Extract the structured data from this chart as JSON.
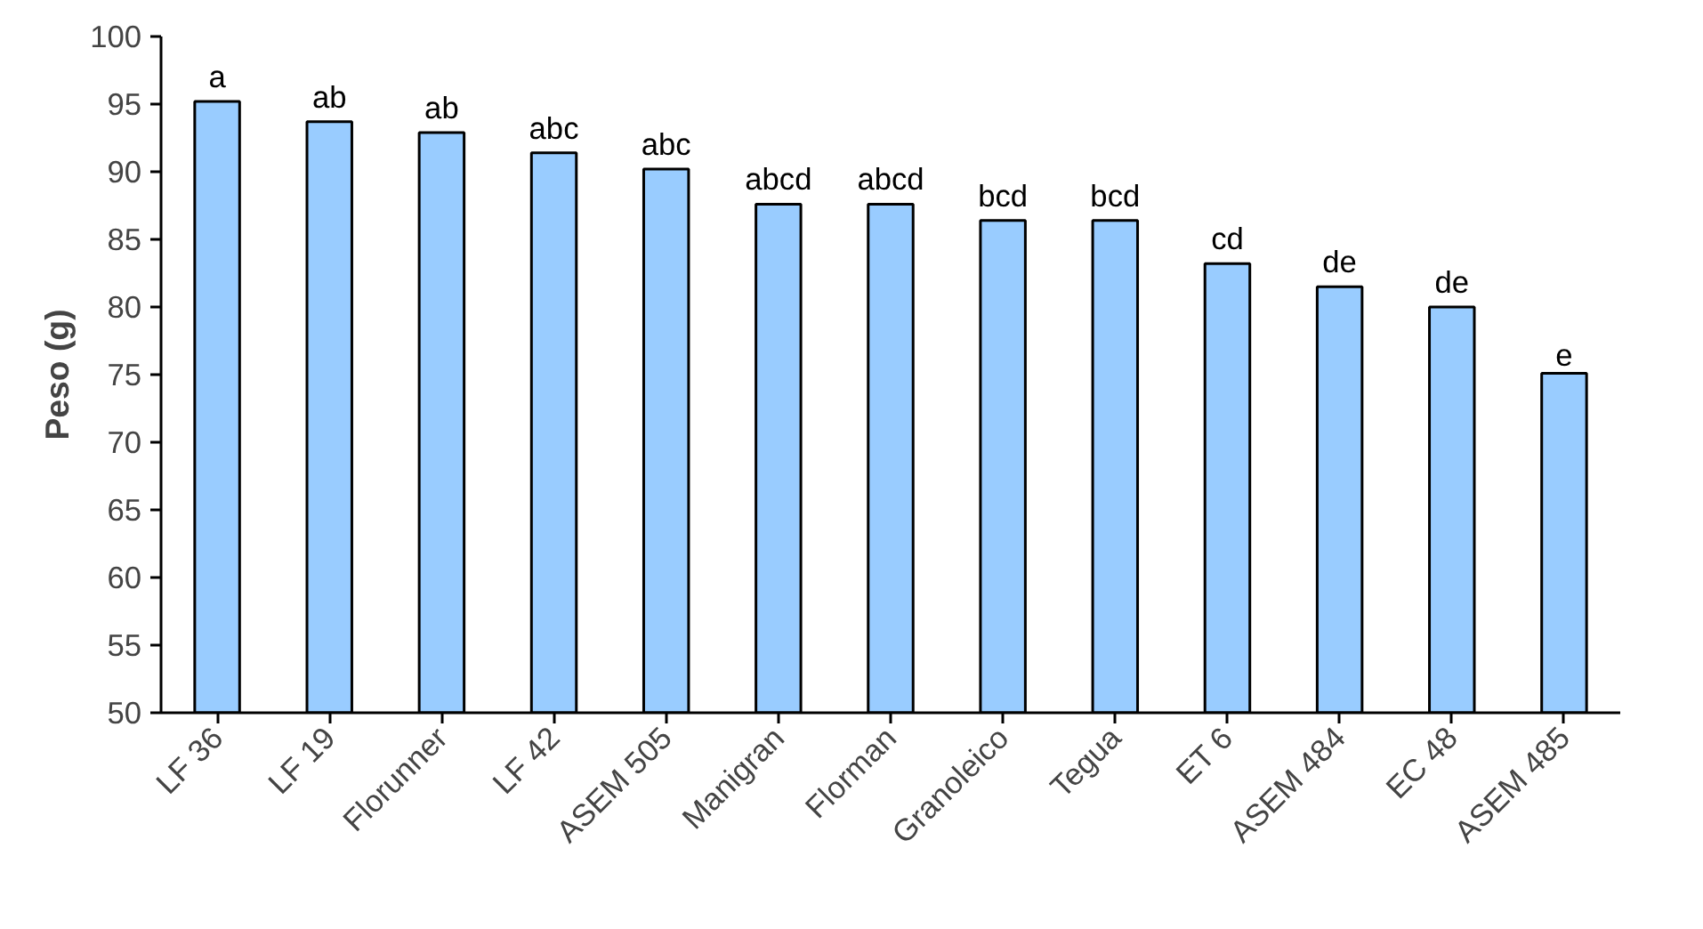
{
  "chart_data": {
    "type": "bar",
    "ylabel": "Peso (g)",
    "categories": [
      "LF 36",
      "LF 19",
      "Florunner",
      "LF 42",
      "ASEM 505",
      "Manigran",
      "Florman",
      "Granoleico",
      "Tegua",
      "ET 6",
      "ASEM 484",
      "EC 48",
      "ASEM 485"
    ],
    "values": [
      95.2,
      93.7,
      92.9,
      91.4,
      90.2,
      87.6,
      87.6,
      86.4,
      86.4,
      83.2,
      81.5,
      80.0,
      75.1
    ],
    "color": "#99ccff",
    "ylim": [
      50,
      100
    ],
    "yticks": [
      50,
      55,
      60,
      65,
      70,
      75,
      80,
      85,
      90,
      95,
      100
    ],
    "grid": false,
    "legend": false,
    "annotations": [
      {
        "text": "a",
        "x": "LF 36",
        "y": 95.2
      },
      {
        "text": "ab",
        "x": "LF 19",
        "y": 93.7
      },
      {
        "text": "ab",
        "x": "Florunner",
        "y": 92.9
      },
      {
        "text": "abc",
        "x": "LF 42",
        "y": 91.4
      },
      {
        "text": "abc",
        "x": "ASEM 505",
        "y": 90.2
      },
      {
        "text": "abcd",
        "x": "Manigran",
        "y": 87.6
      },
      {
        "text": "abcd",
        "x": "Florman",
        "y": 87.6
      },
      {
        "text": "bcd",
        "x": "Granoleico",
        "y": 86.4
      },
      {
        "text": "bcd",
        "x": "Tegua",
        "y": 86.4
      },
      {
        "text": "cd",
        "x": "ET 6",
        "y": 83.2
      },
      {
        "text": "de",
        "x": "ASEM 484",
        "y": 81.5
      },
      {
        "text": "de",
        "x": "EC 48",
        "y": 80.0
      },
      {
        "text": "e",
        "x": "ASEM 485",
        "y": 75.1
      }
    ]
  }
}
